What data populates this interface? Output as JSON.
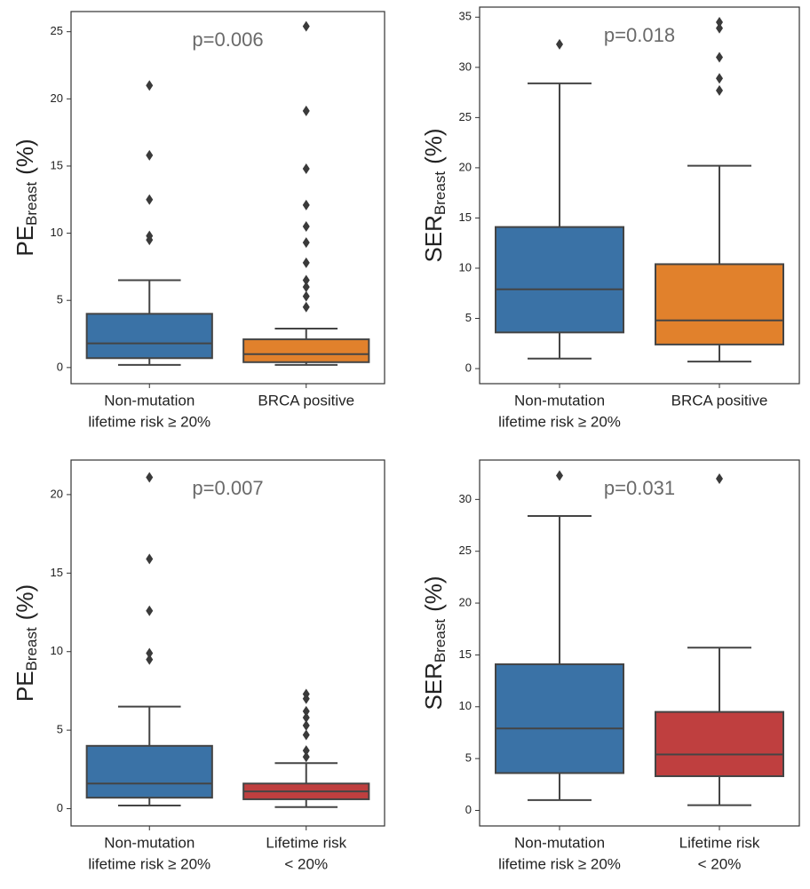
{
  "chart_data": [
    {
      "type": "box",
      "annotation": "p=0.006",
      "ylabel": {
        "main": "PE",
        "sub": "Breast",
        "unit": "(%)"
      },
      "ylim": [
        -1.2,
        26.5
      ],
      "yticks": [
        0,
        5,
        10,
        15,
        20,
        25
      ],
      "boxes": [
        {
          "category": [
            "Non-mutation",
            "lifetime risk ≥ 20%"
          ],
          "color": "#3a72a6",
          "whisker_low": 0.2,
          "q1": 0.7,
          "median": 1.8,
          "q3": 4.0,
          "whisker_high": 6.5,
          "outliers": [
            9.5,
            9.8,
            12.5,
            15.8,
            21.0
          ]
        },
        {
          "category": [
            "BRCA positive"
          ],
          "color": "#e1812c",
          "whisker_low": 0.2,
          "q1": 0.4,
          "median": 1.0,
          "q3": 2.1,
          "whisker_high": 2.9,
          "outliers": [
            4.5,
            5.3,
            6.0,
            6.5,
            7.8,
            9.3,
            10.5,
            12.1,
            14.8,
            19.1,
            25.4
          ]
        }
      ]
    },
    {
      "type": "box",
      "annotation": "p=0.018",
      "ylabel": {
        "main": "SER",
        "sub": "Breast",
        "unit": "(%)"
      },
      "ylim": [
        -1.5,
        36
      ],
      "yticks": [
        0,
        5,
        10,
        15,
        20,
        25,
        30,
        35
      ],
      "boxes": [
        {
          "category": [
            "Non-mutation",
            "lifetime risk ≥ 20%"
          ],
          "color": "#3a72a6",
          "whisker_low": 1.0,
          "q1": 3.6,
          "median": 7.9,
          "q3": 14.1,
          "whisker_high": 28.4,
          "outliers": [
            32.3
          ]
        },
        {
          "category": [
            "BRCA positive"
          ],
          "color": "#e1812c",
          "whisker_low": 0.7,
          "q1": 2.4,
          "median": 4.8,
          "q3": 10.4,
          "whisker_high": 20.2,
          "outliers": [
            27.7,
            28.9,
            31.0,
            33.9,
            34.5
          ]
        }
      ]
    },
    {
      "type": "box",
      "annotation": "p=0.007",
      "ylabel": {
        "main": "PE",
        "sub": "Breast",
        "unit": "(%)"
      },
      "ylim": [
        -1.1,
        22.2
      ],
      "yticks": [
        0,
        5,
        10,
        15,
        20
      ],
      "boxes": [
        {
          "category": [
            "Non-mutation",
            "lifetime risk ≥ 20%"
          ],
          "color": "#3a72a6",
          "whisker_low": 0.2,
          "q1": 0.7,
          "median": 1.6,
          "q3": 4.0,
          "whisker_high": 6.5,
          "outliers": [
            9.5,
            9.9,
            12.6,
            15.9,
            21.1
          ]
        },
        {
          "category": [
            "Lifetime risk",
            "< 20%"
          ],
          "color": "#bf3f3f",
          "whisker_low": 0.1,
          "q1": 0.6,
          "median": 1.1,
          "q3": 1.6,
          "whisker_high": 2.9,
          "outliers": [
            3.3,
            3.7,
            4.7,
            5.3,
            5.8,
            6.2,
            7.0,
            7.3
          ]
        }
      ]
    },
    {
      "type": "box",
      "annotation": "p=0.031",
      "ylabel": {
        "main": "SER",
        "sub": "Breast",
        "unit": "(%)"
      },
      "ylim": [
        -1.5,
        33.8
      ],
      "yticks": [
        0,
        5,
        10,
        15,
        20,
        25,
        30
      ],
      "boxes": [
        {
          "category": [
            "Non-mutation",
            "lifetime risk ≥ 20%"
          ],
          "color": "#3a72a6",
          "whisker_low": 1.0,
          "q1": 3.6,
          "median": 7.9,
          "q3": 14.1,
          "whisker_high": 28.4,
          "outliers": [
            32.3
          ]
        },
        {
          "category": [
            "Lifetime risk",
            "< 20%"
          ],
          "color": "#bf3f3f",
          "whisker_low": 0.5,
          "q1": 3.3,
          "median": 5.4,
          "q3": 9.5,
          "whisker_high": 15.7,
          "outliers": [
            32.0
          ]
        }
      ]
    }
  ]
}
